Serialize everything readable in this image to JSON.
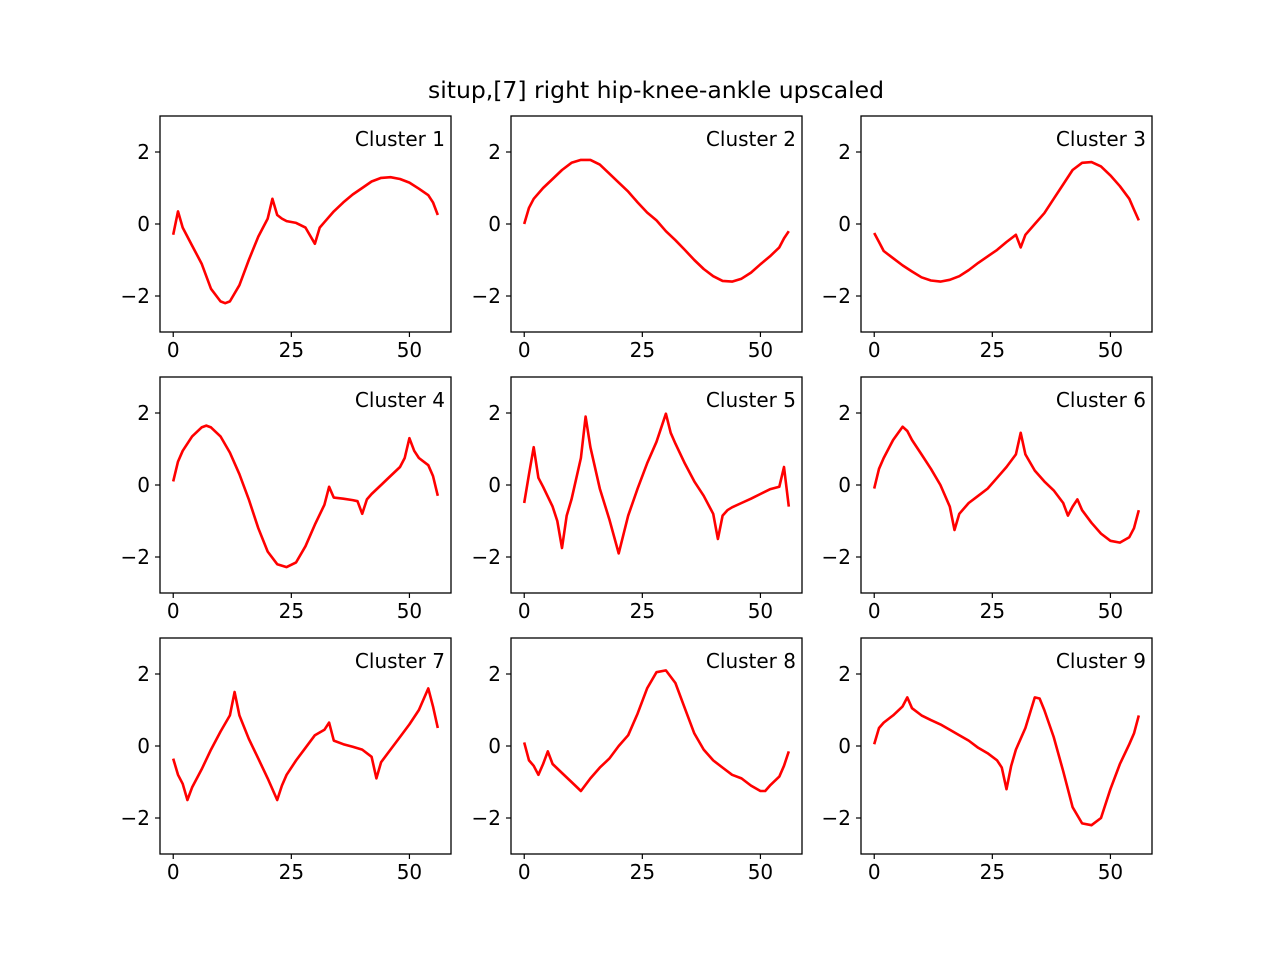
{
  "figure": {
    "title": "situp,[7] right hip-knee-ankle upscaled"
  },
  "chart_data": {
    "type": "line",
    "title": "situp,[7] right hip-knee-ankle upscaled",
    "line_color": "#ff0000",
    "xlim": [
      -2.8,
      58.8
    ],
    "ylim": [
      -3,
      3
    ],
    "xticks": [
      0,
      25,
      50
    ],
    "yticks": [
      2,
      0,
      -2
    ],
    "ytick_labels": [
      "2",
      "0",
      "−2"
    ],
    "grid": false,
    "subplots": [
      {
        "label": "Cluster 1",
        "x": [
          0,
          1,
          2,
          4,
          6,
          8,
          10,
          11,
          12,
          14,
          16,
          18,
          20,
          21,
          22,
          23,
          24,
          26,
          28,
          30,
          31,
          32,
          34,
          36,
          38,
          40,
          42,
          44,
          46,
          48,
          50,
          52,
          54,
          55,
          56
        ],
        "y": [
          -0.3,
          0.35,
          -0.1,
          -0.6,
          -1.1,
          -1.8,
          -2.15,
          -2.2,
          -2.15,
          -1.7,
          -1.0,
          -0.35,
          0.15,
          0.7,
          0.25,
          0.15,
          0.08,
          0.03,
          -0.1,
          -0.55,
          -0.1,
          0.05,
          0.35,
          0.6,
          0.82,
          1.0,
          1.18,
          1.28,
          1.3,
          1.25,
          1.15,
          0.98,
          0.8,
          0.6,
          0.25
        ]
      },
      {
        "label": "Cluster 2",
        "x": [
          0,
          1,
          2,
          4,
          6,
          8,
          10,
          12,
          14,
          16,
          18,
          20,
          22,
          24,
          26,
          28,
          30,
          32,
          34,
          36,
          38,
          40,
          42,
          44,
          46,
          48,
          50,
          52,
          54,
          55,
          56
        ],
        "y": [
          0.0,
          0.45,
          0.7,
          1.0,
          1.25,
          1.5,
          1.7,
          1.78,
          1.78,
          1.65,
          1.4,
          1.15,
          0.9,
          0.6,
          0.32,
          0.1,
          -0.2,
          -0.45,
          -0.72,
          -1.0,
          -1.25,
          -1.45,
          -1.58,
          -1.6,
          -1.52,
          -1.35,
          -1.12,
          -0.9,
          -0.65,
          -0.4,
          -0.2
        ]
      },
      {
        "label": "Cluster 3",
        "x": [
          0,
          1,
          2,
          4,
          6,
          8,
          10,
          12,
          14,
          16,
          18,
          20,
          22,
          24,
          26,
          28,
          30,
          31,
          32,
          34,
          36,
          38,
          40,
          42,
          44,
          46,
          48,
          50,
          52,
          54,
          55,
          56
        ],
        "y": [
          -0.25,
          -0.5,
          -0.75,
          -0.95,
          -1.15,
          -1.32,
          -1.48,
          -1.57,
          -1.6,
          -1.55,
          -1.45,
          -1.28,
          -1.08,
          -0.9,
          -0.72,
          -0.5,
          -0.3,
          -0.65,
          -0.3,
          0.0,
          0.3,
          0.7,
          1.1,
          1.5,
          1.7,
          1.72,
          1.6,
          1.35,
          1.05,
          0.7,
          0.4,
          0.1
        ]
      },
      {
        "label": "Cluster 4",
        "x": [
          0,
          1,
          2,
          4,
          6,
          7,
          8,
          10,
          12,
          14,
          16,
          18,
          20,
          22,
          24,
          26,
          28,
          30,
          32,
          33,
          34,
          36,
          38,
          39,
          40,
          41,
          42,
          44,
          46,
          48,
          49,
          50,
          51,
          52,
          54,
          55,
          56
        ],
        "y": [
          0.1,
          0.65,
          0.95,
          1.35,
          1.6,
          1.65,
          1.6,
          1.35,
          0.9,
          0.3,
          -0.4,
          -1.2,
          -1.85,
          -2.2,
          -2.28,
          -2.15,
          -1.7,
          -1.1,
          -0.55,
          -0.05,
          -0.35,
          -0.38,
          -0.42,
          -0.45,
          -0.8,
          -0.4,
          -0.25,
          0.0,
          0.25,
          0.5,
          0.75,
          1.3,
          0.95,
          0.75,
          0.55,
          0.25,
          -0.3
        ]
      },
      {
        "label": "Cluster 5",
        "x": [
          0,
          1,
          2,
          3,
          4,
          6,
          7,
          8,
          9,
          10,
          12,
          13,
          14,
          16,
          18,
          20,
          22,
          24,
          26,
          28,
          30,
          31,
          32,
          34,
          36,
          38,
          40,
          41,
          42,
          43,
          44,
          46,
          48,
          50,
          52,
          54,
          55,
          56
        ],
        "y": [
          -0.5,
          0.3,
          1.05,
          0.2,
          -0.05,
          -0.6,
          -1.0,
          -1.75,
          -0.85,
          -0.4,
          0.75,
          1.9,
          1.05,
          -0.1,
          -0.95,
          -1.9,
          -0.85,
          -0.1,
          0.6,
          1.2,
          1.98,
          1.45,
          1.15,
          0.6,
          0.1,
          -0.3,
          -0.8,
          -1.5,
          -0.85,
          -0.7,
          -0.62,
          -0.5,
          -0.38,
          -0.25,
          -0.12,
          -0.05,
          0.5,
          -0.6
        ]
      },
      {
        "label": "Cluster 6",
        "x": [
          0,
          1,
          2,
          4,
          6,
          7,
          8,
          10,
          12,
          14,
          16,
          17,
          18,
          20,
          22,
          24,
          26,
          28,
          30,
          31,
          32,
          34,
          36,
          38,
          40,
          41,
          42,
          43,
          44,
          46,
          48,
          50,
          52,
          54,
          55,
          56
        ],
        "y": [
          -0.1,
          0.45,
          0.75,
          1.25,
          1.62,
          1.5,
          1.25,
          0.85,
          0.45,
          0.0,
          -0.6,
          -1.25,
          -0.8,
          -0.5,
          -0.3,
          -0.1,
          0.2,
          0.5,
          0.85,
          1.45,
          0.85,
          0.4,
          0.1,
          -0.15,
          -0.5,
          -0.85,
          -0.6,
          -0.4,
          -0.7,
          -1.05,
          -1.35,
          -1.55,
          -1.6,
          -1.45,
          -1.2,
          -0.7
        ]
      },
      {
        "label": "Cluster 7",
        "x": [
          0,
          1,
          2,
          3,
          4,
          6,
          8,
          10,
          12,
          13,
          14,
          16,
          18,
          20,
          22,
          23,
          24,
          26,
          28,
          30,
          32,
          33,
          34,
          36,
          38,
          40,
          42,
          43,
          44,
          46,
          48,
          50,
          52,
          54,
          55,
          56
        ],
        "y": [
          -0.35,
          -0.8,
          -1.05,
          -1.5,
          -1.15,
          -0.65,
          -0.1,
          0.4,
          0.85,
          1.5,
          0.85,
          0.2,
          -0.35,
          -0.9,
          -1.5,
          -1.1,
          -0.8,
          -0.4,
          -0.05,
          0.3,
          0.45,
          0.65,
          0.15,
          0.05,
          -0.02,
          -0.1,
          -0.3,
          -0.9,
          -0.45,
          -0.1,
          0.25,
          0.6,
          1.0,
          1.6,
          1.1,
          0.5
        ]
      },
      {
        "label": "Cluster 8",
        "x": [
          0,
          1,
          2,
          3,
          4,
          5,
          6,
          8,
          10,
          12,
          14,
          16,
          18,
          20,
          22,
          24,
          26,
          28,
          30,
          32,
          34,
          36,
          38,
          40,
          42,
          44,
          46,
          48,
          50,
          51,
          52,
          54,
          55,
          56
        ],
        "y": [
          0.1,
          -0.4,
          -0.55,
          -0.8,
          -0.5,
          -0.15,
          -0.5,
          -0.75,
          -1.0,
          -1.25,
          -0.9,
          -0.6,
          -0.35,
          0.0,
          0.3,
          0.9,
          1.6,
          2.05,
          2.1,
          1.75,
          1.05,
          0.35,
          -0.1,
          -0.4,
          -0.6,
          -0.8,
          -0.9,
          -1.1,
          -1.25,
          -1.25,
          -1.1,
          -0.85,
          -0.55,
          -0.15
        ]
      },
      {
        "label": "Cluster 9",
        "x": [
          0,
          1,
          2,
          4,
          6,
          7,
          8,
          10,
          12,
          14,
          16,
          18,
          20,
          22,
          24,
          26,
          27,
          28,
          29,
          30,
          32,
          34,
          35,
          36,
          38,
          40,
          42,
          44,
          46,
          48,
          50,
          52,
          54,
          55,
          56
        ],
        "y": [
          0.05,
          0.5,
          0.65,
          0.85,
          1.1,
          1.35,
          1.05,
          0.85,
          0.72,
          0.6,
          0.45,
          0.3,
          0.15,
          -0.05,
          -0.2,
          -0.4,
          -0.6,
          -1.2,
          -0.55,
          -0.1,
          0.5,
          1.35,
          1.32,
          1.0,
          0.25,
          -0.7,
          -1.7,
          -2.15,
          -2.2,
          -2.0,
          -1.2,
          -0.5,
          0.05,
          0.35,
          0.85
        ]
      }
    ]
  }
}
